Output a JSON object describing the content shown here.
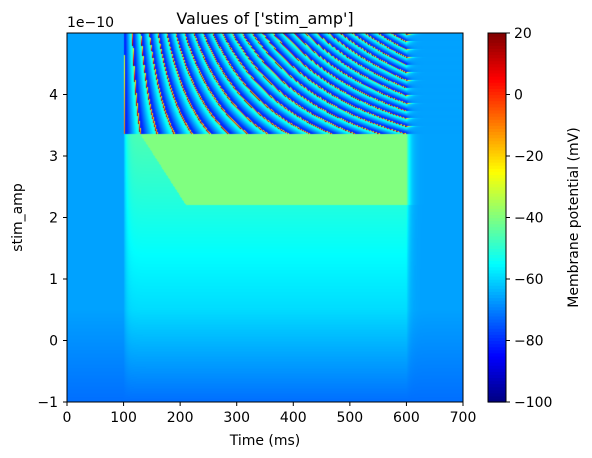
{
  "chart_data": {
    "type": "heatmap",
    "title": "Values of ['stim_amp']",
    "xlabel": "Time (ms)",
    "ylabel": "stim_amp",
    "y_offset_label": "1e−10",
    "colorbar_label": "Membrane potential (mV)",
    "colormap": "jet",
    "xlim": [
      0,
      700
    ],
    "ylim": [
      -1,
      5
    ],
    "clim": [
      -100,
      20
    ],
    "x_ticks": [
      0,
      100,
      200,
      300,
      400,
      500,
      600,
      700
    ],
    "x_tick_labels": [
      "0",
      "100",
      "200",
      "300",
      "400",
      "500",
      "600",
      "700"
    ],
    "y_ticks": [
      -1,
      0,
      1,
      2,
      3,
      4
    ],
    "y_tick_labels": [
      "−1",
      "0",
      "1",
      "2",
      "3",
      "4"
    ],
    "colorbar_ticks": [
      -100,
      -80,
      -60,
      -40,
      -20,
      0,
      20
    ],
    "colorbar_tick_labels": [
      "−100",
      "−80",
      "−60",
      "−40",
      "−20",
      "0",
      "20"
    ],
    "stimulus_window_ms": [
      100,
      600
    ],
    "spiking_threshold_amp": 3.0,
    "values_summary": {
      "resting_potential_mV": -66,
      "baseline_bottom_mV": -78,
      "plateau_region": {
        "amp_range": [
          2.2,
          3.0
        ],
        "time_ms": [
          140,
          600
        ],
        "value_mV": -40
      },
      "depolarization_at_top_mV": -48,
      "spike_peak_mV": 20,
      "after_hyperpolarization_mV": -80
    }
  }
}
